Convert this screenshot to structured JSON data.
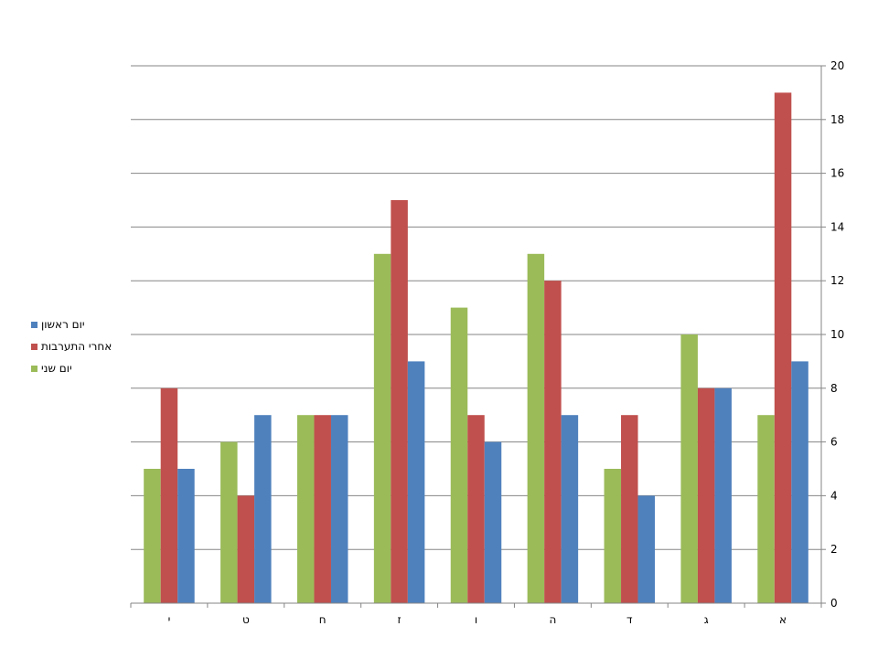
{
  "chart_data": {
    "type": "bar",
    "title": "",
    "xlabel": "",
    "ylabel": "",
    "categories": [
      "א",
      "ג",
      "ד",
      "ה",
      "ו",
      "ז",
      "ח",
      "ט",
      "י"
    ],
    "category_order": "right-to-left",
    "y_axis_side": "right",
    "ylim": [
      0,
      20
    ],
    "yticks": [
      "0",
      "2",
      "4",
      "6",
      "8",
      "10",
      "12",
      "14",
      "16",
      "18",
      "20"
    ],
    "grid": true,
    "legend_position": "left",
    "series": [
      {
        "name": "יום שני",
        "color": "#9BBB59",
        "values": [
          7,
          10,
          5,
          13,
          11,
          13,
          7,
          6,
          5
        ]
      },
      {
        "name": "אחרי התערבות",
        "color": "#C0504D",
        "values": [
          19,
          8,
          7,
          12,
          7,
          15,
          7,
          4,
          8
        ]
      },
      {
        "name": "יום ראשון",
        "color": "#4F81BD",
        "values": [
          9,
          8,
          4,
          7,
          6,
          9,
          7,
          7,
          5
        ]
      }
    ],
    "legend_order": [
      "יום ראשון",
      "אחרי התערבות",
      "יום שני"
    ]
  }
}
